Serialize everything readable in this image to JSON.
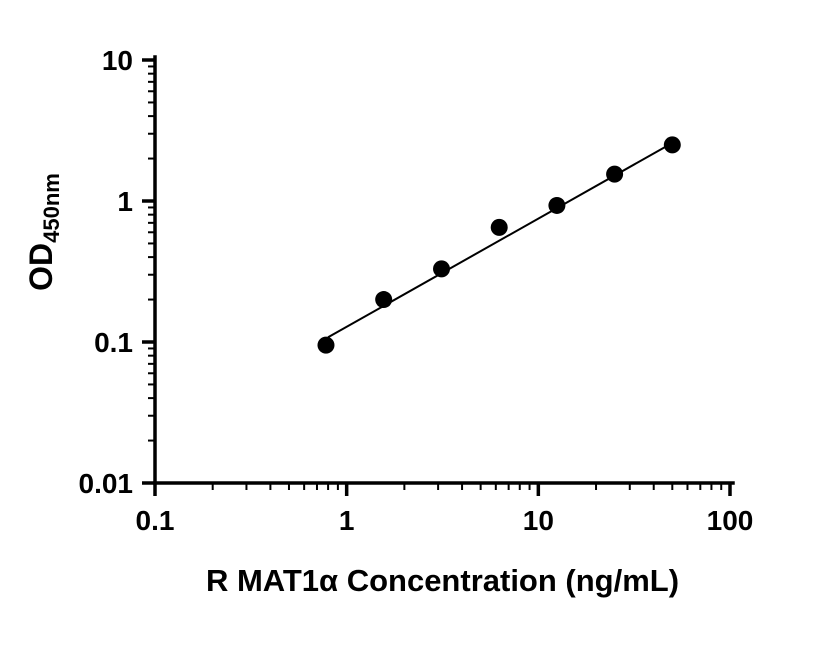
{
  "chart_data": {
    "type": "scatter",
    "title": "",
    "xlabel": "R MAT1α Concentration (ng/mL)",
    "ylabel": "OD",
    "ylabel_subscript": "450nm",
    "xscale": "log",
    "yscale": "log",
    "xlim": [
      0.1,
      100
    ],
    "ylim": [
      0.01,
      10
    ],
    "grid": "off",
    "legend": "none",
    "x": [
      0.78,
      1.56,
      3.125,
      6.25,
      12.5,
      25,
      50
    ],
    "y": [
      0.095,
      0.2,
      0.33,
      0.65,
      0.93,
      1.55,
      2.5
    ],
    "x_ticks": [
      {
        "value": 0.1,
        "label": "0.1"
      },
      {
        "value": 1,
        "label": "1"
      },
      {
        "value": 10,
        "label": "10"
      },
      {
        "value": 100,
        "label": "100"
      }
    ],
    "y_ticks": [
      {
        "value": 0.01,
        "label": "0.01"
      },
      {
        "value": 0.1,
        "label": "0.1"
      },
      {
        "value": 1,
        "label": "1"
      },
      {
        "value": 10,
        "label": "10"
      }
    ],
    "trendline": {
      "x1": 0.8,
      "y1": 0.108,
      "x2": 50.5,
      "y2": 2.6
    },
    "marker_color": "#000000",
    "line_color": "#000000",
    "axis_color": "#000000"
  }
}
